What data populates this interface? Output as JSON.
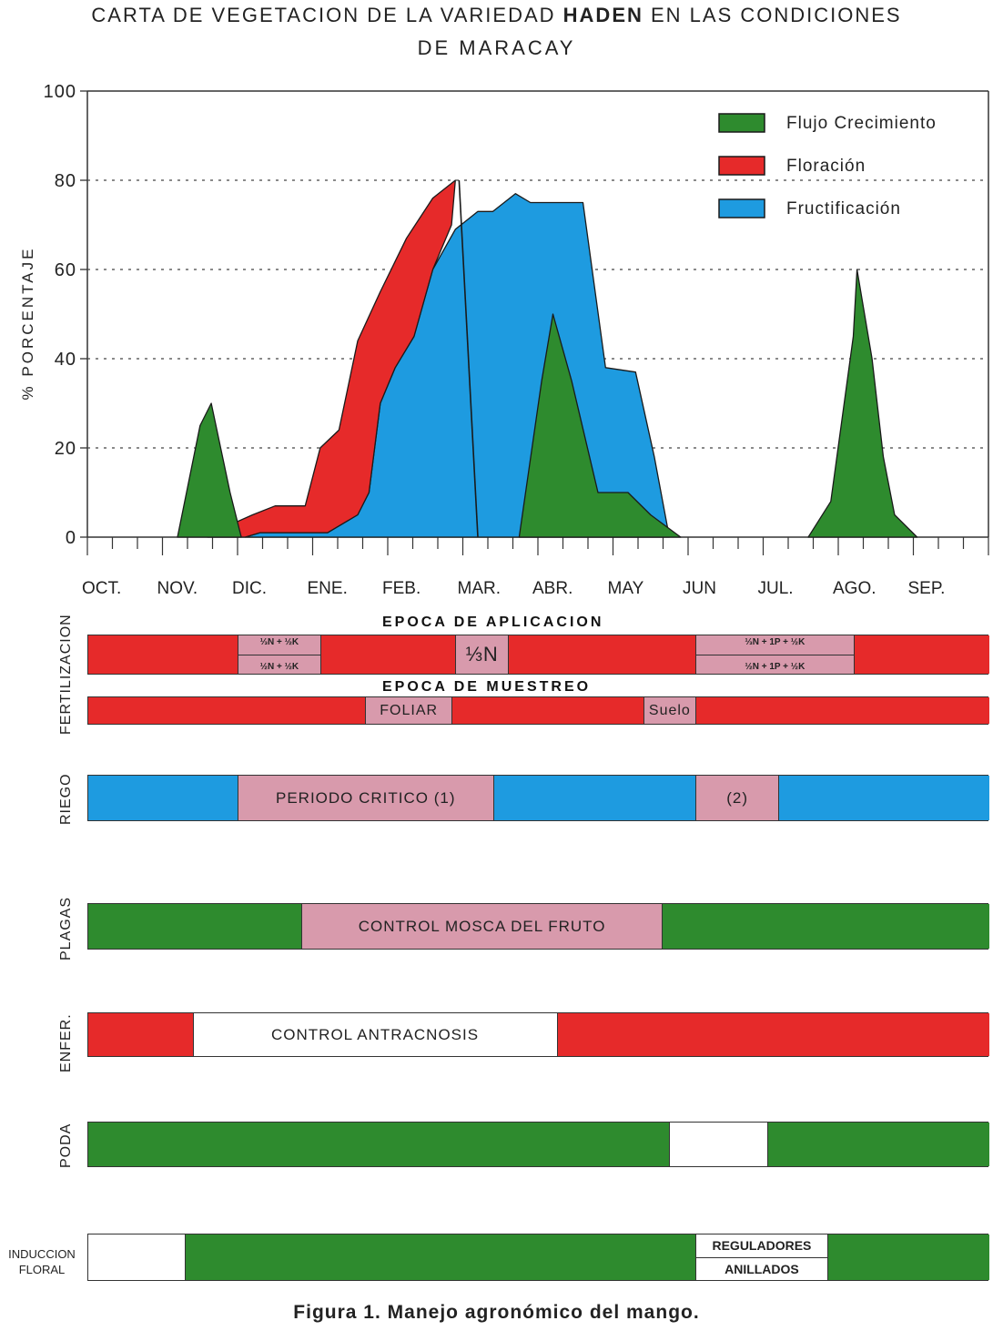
{
  "title": {
    "before": "CARTA DE VEGETACION DE LA VARIEDAD ",
    "bold": "HADEN",
    "after": " EN LAS CONDICIONES",
    "line2": "DE MARACAY"
  },
  "colors": {
    "green": "#2e8b2e",
    "red": "#e62a2a",
    "blue": "#1e9be0",
    "pink": "#d89aac"
  },
  "chart_data": {
    "type": "area",
    "ylabel": "% PORCENTAJE",
    "ylim": [
      0,
      100
    ],
    "yticks": [
      0,
      20,
      40,
      60,
      80,
      100
    ],
    "gridlines_dotted": [
      20,
      40,
      60,
      80
    ],
    "months": [
      "OCT.",
      "NOV.",
      "DIC.",
      "ENE.",
      "FEB.",
      "MAR.",
      "ABR.",
      "MAY",
      "JUN",
      "JUL.",
      "AGO.",
      "SEP."
    ],
    "x_unit": "month index (0 = OCT.)",
    "legend_position": "top-right",
    "series": [
      {
        "name": "Fructificación",
        "color": "#1e9be0",
        "points": [
          [
            2.1,
            0
          ],
          [
            2.3,
            1
          ],
          [
            2.7,
            1
          ],
          [
            3.2,
            1
          ],
          [
            3.6,
            5
          ],
          [
            3.75,
            10
          ],
          [
            3.9,
            30
          ],
          [
            4.1,
            38
          ],
          [
            4.35,
            45
          ],
          [
            4.6,
            60
          ],
          [
            4.9,
            69
          ],
          [
            5.2,
            73
          ],
          [
            5.4,
            73
          ],
          [
            5.7,
            77
          ],
          [
            5.9,
            75
          ],
          [
            6.6,
            75
          ],
          [
            6.9,
            38
          ],
          [
            7.3,
            37
          ],
          [
            7.55,
            18
          ],
          [
            7.75,
            0
          ]
        ]
      },
      {
        "name": "Floración",
        "color": "#e62a2a",
        "points": [
          [
            1.6,
            0
          ],
          [
            1.8,
            2
          ],
          [
            2.2,
            5
          ],
          [
            2.5,
            7
          ],
          [
            2.9,
            7
          ],
          [
            3.1,
            20
          ],
          [
            3.35,
            24
          ],
          [
            3.6,
            44
          ],
          [
            3.9,
            55
          ],
          [
            4.25,
            67
          ],
          [
            4.6,
            76
          ],
          [
            4.9,
            80
          ],
          [
            4.85,
            70
          ],
          [
            4.6,
            60
          ],
          [
            4.35,
            45
          ],
          [
            4.1,
            38
          ],
          [
            3.9,
            30
          ],
          [
            3.75,
            10
          ],
          [
            3.6,
            5
          ],
          [
            3.2,
            1
          ],
          [
            2.7,
            1
          ],
          [
            2.3,
            1
          ],
          [
            2.1,
            0
          ]
        ]
      },
      {
        "name": "Flujo Crecimiento",
        "color": "#2e8b2e",
        "groups": [
          [
            [
              1.2,
              0
            ],
            [
              1.5,
              25
            ],
            [
              1.65,
              30
            ],
            [
              1.9,
              10
            ],
            [
              2.05,
              0
            ]
          ],
          [
            [
              5.75,
              0
            ],
            [
              6.05,
              35
            ],
            [
              6.2,
              50
            ],
            [
              6.45,
              35
            ],
            [
              6.8,
              10
            ],
            [
              7.2,
              10
            ],
            [
              7.5,
              5
            ],
            [
              7.9,
              0
            ]
          ],
          [
            [
              9.6,
              0
            ],
            [
              9.9,
              8
            ],
            [
              10.2,
              45
            ],
            [
              10.25,
              60
            ],
            [
              10.45,
              40
            ],
            [
              10.6,
              18
            ],
            [
              10.75,
              5
            ],
            [
              11.05,
              0
            ]
          ]
        ]
      }
    ],
    "divider_line": [
      [
        4.95,
        80
      ],
      [
        5.2,
        0
      ]
    ]
  },
  "rows": {
    "fertilizacion": {
      "label": "FERTILIZACION",
      "aplicacion_heading": "EPOCA DE APLICACION",
      "aplicacion_segments": [
        {
          "from": 0,
          "to": 2.0,
          "color": "red"
        },
        {
          "from": 2.0,
          "to": 3.1,
          "color": "pink",
          "top": "⅓N + ½K",
          "bottom": "½N + ½K"
        },
        {
          "from": 3.1,
          "to": 4.9,
          "color": "red"
        },
        {
          "from": 4.9,
          "to": 5.6,
          "color": "pink",
          "text": "⅓N"
        },
        {
          "from": 5.6,
          "to": 8.1,
          "color": "red"
        },
        {
          "from": 8.1,
          "to": 10.2,
          "color": "pink",
          "top": "⅓N + 1P + ½K",
          "bottom": "½N + 1P + ½K"
        },
        {
          "from": 10.2,
          "to": 12.0,
          "color": "red"
        }
      ],
      "muestreo_heading": "EPOCA DE MUESTREO",
      "muestreo_segments": [
        {
          "from": 0,
          "to": 3.7,
          "color": "red"
        },
        {
          "from": 3.7,
          "to": 4.85,
          "color": "pink",
          "text": "FOLIAR"
        },
        {
          "from": 4.85,
          "to": 7.4,
          "color": "red"
        },
        {
          "from": 7.4,
          "to": 8.1,
          "color": "pink",
          "text": "Suelo"
        },
        {
          "from": 8.1,
          "to": 12.0,
          "color": "red"
        }
      ]
    },
    "riego": {
      "label": "RIEGO",
      "segments": [
        {
          "from": 0,
          "to": 2.0,
          "color": "blue"
        },
        {
          "from": 2.0,
          "to": 5.4,
          "color": "pink",
          "text": "PERIODO CRITICO (1)"
        },
        {
          "from": 5.4,
          "to": 8.1,
          "color": "blue"
        },
        {
          "from": 8.1,
          "to": 9.2,
          "color": "pink",
          "text": "(2)"
        },
        {
          "from": 9.2,
          "to": 12.0,
          "color": "blue"
        }
      ]
    },
    "plagas": {
      "label": "PLAGAS",
      "segments": [
        {
          "from": 0,
          "to": 2.85,
          "color": "green"
        },
        {
          "from": 2.85,
          "to": 7.65,
          "color": "pink",
          "text": "CONTROL MOSCA DEL FRUTO"
        },
        {
          "from": 7.65,
          "to": 12.0,
          "color": "green"
        }
      ]
    },
    "enfer": {
      "label": "ENFER.",
      "segments": [
        {
          "from": 0,
          "to": 1.4,
          "color": "red"
        },
        {
          "from": 1.4,
          "to": 6.25,
          "color": "white",
          "text": "CONTROL ANTRACNOSIS"
        },
        {
          "from": 6.25,
          "to": 12.0,
          "color": "red"
        }
      ]
    },
    "poda": {
      "label": "PODA",
      "segments": [
        {
          "from": 0,
          "to": 7.75,
          "color": "green"
        },
        {
          "from": 7.75,
          "to": 9.05,
          "color": "white"
        },
        {
          "from": 9.05,
          "to": 12.0,
          "color": "green"
        }
      ]
    },
    "induccion": {
      "label_line1": "INDUCCION",
      "label_line2": "FLORAL",
      "segments": [
        {
          "from": 0,
          "to": 1.3,
          "color": "white"
        },
        {
          "from": 1.3,
          "to": 8.1,
          "color": "green"
        },
        {
          "from": 8.1,
          "to": 9.85,
          "color": "white",
          "top": "REGULADORES",
          "bottom": "ANILLADOS"
        },
        {
          "from": 9.85,
          "to": 12.0,
          "color": "green"
        }
      ]
    }
  },
  "caption": "Figura 1.   Manejo agronómico del mango."
}
